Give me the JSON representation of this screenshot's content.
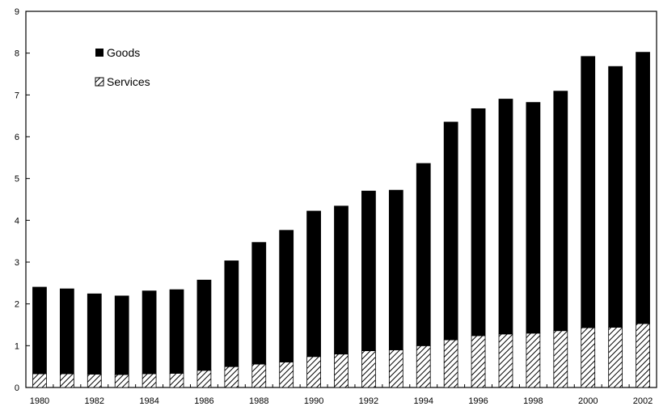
{
  "chart_data": {
    "type": "bar",
    "stacked": true,
    "categories": [
      "1980",
      "1981",
      "1982",
      "1983",
      "1984",
      "1985",
      "1986",
      "1987",
      "1988",
      "1989",
      "1990",
      "1991",
      "1992",
      "1993",
      "1994",
      "1995",
      "1996",
      "1997",
      "1998",
      "1999",
      "2000",
      "2001",
      "2002"
    ],
    "x_tick_labels": [
      "1980",
      "1982",
      "1984",
      "1986",
      "1988",
      "1990",
      "1992",
      "1994",
      "1996",
      "1998",
      "2000",
      "2002"
    ],
    "y_tick_labels": [
      "0",
      "1",
      "2",
      "3",
      "4",
      "5",
      "6",
      "7",
      "8",
      "9"
    ],
    "ylim": [
      0,
      9
    ],
    "grid": false,
    "legend_position": "top-left",
    "series": [
      {
        "name": "Goods",
        "pattern": "solid",
        "color": "#000000",
        "values": [
          2.07,
          2.03,
          1.92,
          1.88,
          1.98,
          2.0,
          2.16,
          2.53,
          2.91,
          3.15,
          3.48,
          3.54,
          3.82,
          3.82,
          4.36,
          5.21,
          5.43,
          5.62,
          5.52,
          5.73,
          6.49,
          6.24,
          6.49
        ]
      },
      {
        "name": "Services",
        "pattern": "hatched",
        "color": "#000000",
        "values": [
          0.33,
          0.33,
          0.32,
          0.31,
          0.33,
          0.34,
          0.41,
          0.5,
          0.56,
          0.61,
          0.74,
          0.8,
          0.88,
          0.9,
          1.0,
          1.14,
          1.24,
          1.28,
          1.3,
          1.36,
          1.43,
          1.44,
          1.53
        ]
      }
    ]
  }
}
